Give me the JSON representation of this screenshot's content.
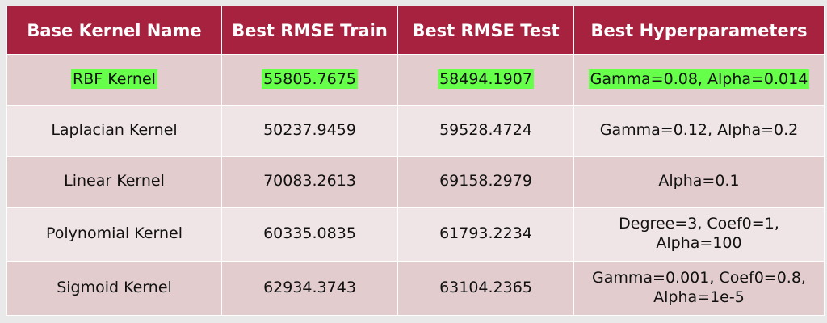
{
  "table": {
    "headers": [
      "Base Kernel Name",
      "Best RMSE Train",
      "Best RMSE Test",
      "Best Hyperparameters"
    ],
    "rows": [
      {
        "name": "RBF Kernel",
        "train": "55805.7675",
        "test": "58494.1907",
        "params_line1": "Gamma=0.08, Alpha=0.014",
        "params_line2": "",
        "highlighted": true
      },
      {
        "name": "Laplacian Kernel",
        "train": "50237.9459",
        "test": "59528.4724",
        "params_line1": "Gamma=0.12, Alpha=0.2",
        "params_line2": ""
      },
      {
        "name": "Linear Kernel",
        "train": "70083.2613",
        "test": "69158.2979",
        "params_line1": "Alpha=0.1",
        "params_line2": ""
      },
      {
        "name": "Polynomial Kernel",
        "train": "60335.0835",
        "test": "61793.2234",
        "params_line1": "Degree=3, Coef0=1,",
        "params_line2": "Alpha=100"
      },
      {
        "name": "Sigmoid Kernel",
        "train": "62934.3743",
        "test": "63104.2365",
        "params_line1": "Gamma=0.001, Coef0=0.8,",
        "params_line2": "Alpha=1e-5"
      }
    ]
  },
  "colors": {
    "header_bg": "#a7223f",
    "header_text": "#ffffff",
    "row_dark": "#e3ccce",
    "row_light": "#f0e5e6",
    "highlight": "#66ff4a",
    "page_bg": "#e9e9e9"
  }
}
